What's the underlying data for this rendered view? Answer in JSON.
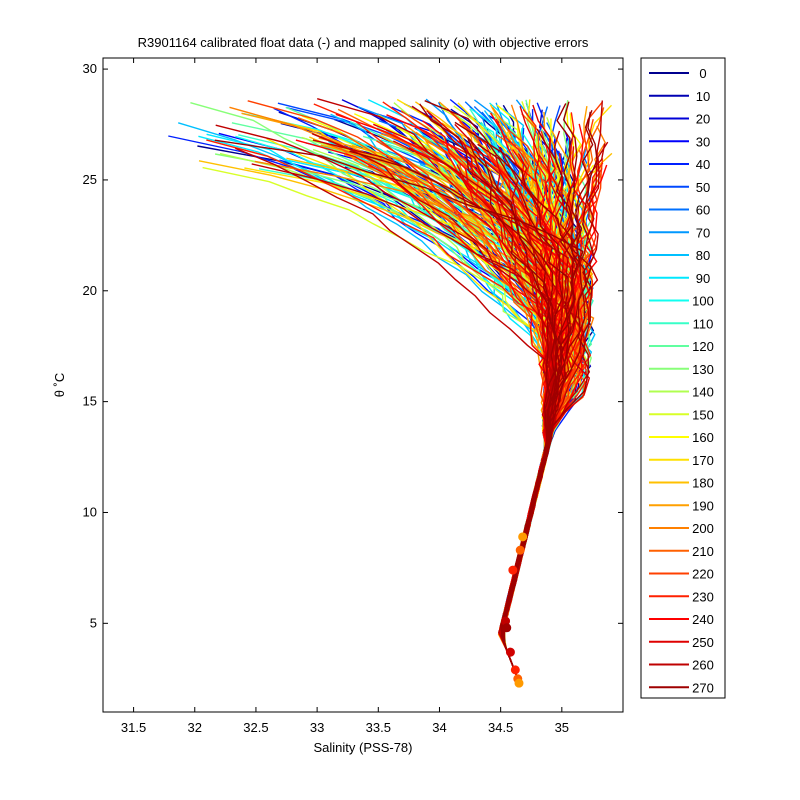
{
  "chart_data": {
    "type": "line",
    "title": "R3901164 calibrated float data (-) and mapped salinity (o) with objective errors",
    "xlabel": "Salinity (PSS-78)",
    "ylabel": "θ ˚C",
    "xlim": [
      31.25,
      35.5
    ],
    "ylim": [
      1,
      30.5
    ],
    "xticks": [
      31.5,
      32,
      32.5,
      33,
      33.5,
      34,
      34.5,
      35
    ],
    "xtick_labels": [
      "31.5",
      "32",
      "32.5",
      "33",
      "33.5",
      "34",
      "34.5",
      "35"
    ],
    "yticks": [
      5,
      10,
      15,
      20,
      25,
      30
    ],
    "ytick_labels": [
      "5",
      "10",
      "15",
      "20",
      "25",
      "30"
    ],
    "grid": false,
    "legend_position": "outside-right",
    "colormap": "jet",
    "series": [
      {
        "name": "0",
        "color": "#00008f"
      },
      {
        "name": "10",
        "color": "#0000b3"
      },
      {
        "name": "20",
        "color": "#0000d7"
      },
      {
        "name": "30",
        "color": "#0000fb"
      },
      {
        "name": "40",
        "color": "#0020ff"
      },
      {
        "name": "50",
        "color": "#0048ff"
      },
      {
        "name": "60",
        "color": "#0070ff"
      },
      {
        "name": "70",
        "color": "#0098ff"
      },
      {
        "name": "80",
        "color": "#00c0ff"
      },
      {
        "name": "90",
        "color": "#00e8ff"
      },
      {
        "name": "100",
        "color": "#10fff0"
      },
      {
        "name": "110",
        "color": "#38ffc8"
      },
      {
        "name": "120",
        "color": "#60ffa0"
      },
      {
        "name": "130",
        "color": "#88ff78"
      },
      {
        "name": "140",
        "color": "#b0ff50"
      },
      {
        "name": "150",
        "color": "#d8ff28"
      },
      {
        "name": "160",
        "color": "#ffff00"
      },
      {
        "name": "170",
        "color": "#ffe000"
      },
      {
        "name": "180",
        "color": "#ffc000"
      },
      {
        "name": "190",
        "color": "#ffa000"
      },
      {
        "name": "200",
        "color": "#ff8000"
      },
      {
        "name": "210",
        "color": "#ff6000"
      },
      {
        "name": "220",
        "color": "#ff4000"
      },
      {
        "name": "230",
        "color": "#ff2000"
      },
      {
        "name": "240",
        "color": "#ff0000"
      },
      {
        "name": "250",
        "color": "#df0000"
      },
      {
        "name": "260",
        "color": "#bf0000"
      },
      {
        "name": "270",
        "color": "#9f0000"
      }
    ]
  }
}
